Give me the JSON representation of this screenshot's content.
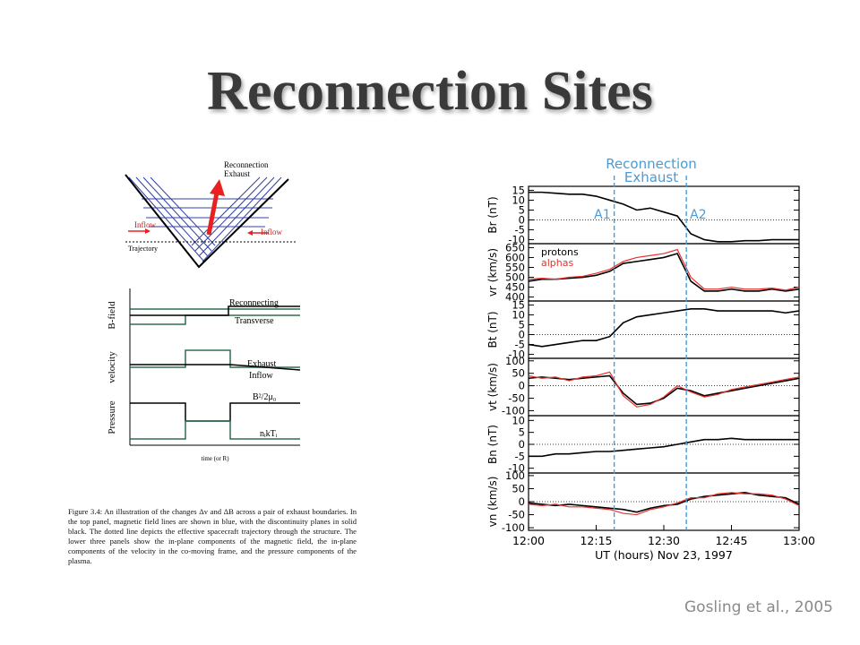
{
  "title": "Reconnection Sites",
  "credit": "Gosling et al., 2005",
  "left_figure": {
    "diagram": {
      "exhaust_label": [
        "Reconnection",
        "Exhaust"
      ],
      "inflow_labels": [
        "Inflow",
        "Inflow"
      ],
      "trajectory_label": "Trajectory"
    },
    "panels": [
      {
        "ylabel": "B-field",
        "labels": [
          "Reconnecting",
          "Transverse"
        ]
      },
      {
        "ylabel": "velocity",
        "labels": [
          "Exhaust",
          "Inflow"
        ]
      },
      {
        "ylabel": "Pressure",
        "labels": [
          "B²/2μ₀",
          "nᵢkTᵢ"
        ]
      }
    ],
    "xlabel": "time (or R)",
    "caption": "Figure 3.4: An illustration of the changes Δv and ΔB across a pair of exhaust boundaries. In the top panel, magnetic field lines are shown in blue, with the discontinuity planes in solid black. The dotted line depicts the effective spacecraft trajectory through the structure. The lower three panels show the in-plane components of the magnetic field, the in-plane components of the velocity in the co-moving frame, and the pressure components of the plasma."
  },
  "right_figure": {
    "header": [
      "Reconnection",
      "Exhaust"
    ]
  },
  "chart_data": [
    {
      "type": "line",
      "ylabel": "Br (nT)",
      "ylim": [
        -12,
        17
      ],
      "yticks": [
        15,
        10,
        5,
        0,
        -5,
        -10
      ],
      "xlim": [
        "12:00",
        "13:00"
      ],
      "x": [
        "12:00",
        "12:03",
        "12:06",
        "12:09",
        "12:12",
        "12:15",
        "12:18",
        "12:21",
        "12:24",
        "12:27",
        "12:30",
        "12:33",
        "12:36",
        "12:39",
        "12:42",
        "12:45",
        "12:48",
        "12:51",
        "12:54",
        "12:57",
        "13:00"
      ],
      "annotations": [
        {
          "text": "A1",
          "x": "12:19"
        },
        {
          "text": "A2",
          "x": "12:35"
        }
      ],
      "series": [
        {
          "color": "#000000",
          "values": [
            14,
            14,
            13.5,
            13,
            13,
            12,
            10,
            8,
            5,
            6,
            4,
            2,
            -7,
            -10,
            -11,
            -11,
            -10.5,
            -10.5,
            -10,
            -10,
            -10
          ]
        }
      ]
    },
    {
      "type": "line",
      "ylabel": "vr (km/s)",
      "ylim": [
        380,
        670
      ],
      "yticks": [
        650,
        600,
        550,
        500,
        450,
        400
      ],
      "xlim": [
        "12:00",
        "13:00"
      ],
      "legend": "upper left",
      "x": [
        "12:00",
        "12:03",
        "12:06",
        "12:09",
        "12:12",
        "12:15",
        "12:18",
        "12:21",
        "12:24",
        "12:27",
        "12:30",
        "12:33",
        "12:36",
        "12:39",
        "12:42",
        "12:45",
        "12:48",
        "12:51",
        "12:54",
        "12:57",
        "13:00"
      ],
      "series": [
        {
          "name": "protons",
          "color": "#000000",
          "values": [
            480,
            490,
            490,
            495,
            500,
            510,
            530,
            570,
            580,
            590,
            600,
            620,
            480,
            430,
            430,
            440,
            430,
            430,
            440,
            430,
            440
          ]
        },
        {
          "name": "alphas",
          "color": "#e8302c",
          "values": [
            490,
            495,
            490,
            500,
            505,
            520,
            540,
            580,
            600,
            610,
            620,
            640,
            500,
            440,
            440,
            450,
            440,
            440,
            445,
            435,
            450
          ]
        }
      ]
    },
    {
      "type": "line",
      "ylabel": "Bt (nT)",
      "ylim": [
        -12,
        17
      ],
      "yticks": [
        15,
        10,
        5,
        0,
        -5,
        -10
      ],
      "xlim": [
        "12:00",
        "13:00"
      ],
      "x": [
        "12:00",
        "12:03",
        "12:06",
        "12:09",
        "12:12",
        "12:15",
        "12:18",
        "12:21",
        "12:24",
        "12:27",
        "12:30",
        "12:33",
        "12:36",
        "12:39",
        "12:42",
        "12:45",
        "12:48",
        "12:51",
        "12:54",
        "12:57",
        "13:00"
      ],
      "series": [
        {
          "color": "#000000",
          "values": [
            -5,
            -6,
            -5,
            -4,
            -3,
            -3,
            -1,
            6,
            9,
            10,
            11,
            12,
            13,
            13,
            12,
            12,
            12,
            12,
            12,
            11,
            12
          ]
        }
      ]
    },
    {
      "type": "line",
      "ylabel": "vt (km/s)",
      "ylim": [
        -120,
        110
      ],
      "yticks": [
        100,
        50,
        0,
        -50,
        -100
      ],
      "xlim": [
        "12:00",
        "13:00"
      ],
      "x": [
        "12:00",
        "12:03",
        "12:06",
        "12:09",
        "12:12",
        "12:15",
        "12:18",
        "12:21",
        "12:24",
        "12:27",
        "12:30",
        "12:33",
        "12:36",
        "12:39",
        "12:42",
        "12:45",
        "12:48",
        "12:51",
        "12:54",
        "12:57",
        "13:00"
      ],
      "series": [
        {
          "name": "protons",
          "color": "#000000",
          "values": [
            30,
            35,
            30,
            25,
            30,
            35,
            40,
            -30,
            -75,
            -70,
            -50,
            -10,
            -20,
            -40,
            -30,
            -20,
            -10,
            0,
            10,
            20,
            30
          ]
        },
        {
          "name": "alphas",
          "color": "#e8302c",
          "values": [
            40,
            30,
            35,
            20,
            35,
            40,
            55,
            -40,
            -85,
            -75,
            -45,
            0,
            -25,
            -45,
            -35,
            -15,
            -5,
            5,
            15,
            25,
            35
          ]
        }
      ]
    },
    {
      "type": "line",
      "ylabel": "Bn (nT)",
      "ylim": [
        -12,
        12
      ],
      "yticks": [
        10,
        5,
        0,
        -5,
        -10
      ],
      "xlim": [
        "12:00",
        "13:00"
      ],
      "x": [
        "12:00",
        "12:03",
        "12:06",
        "12:09",
        "12:12",
        "12:15",
        "12:18",
        "12:21",
        "12:24",
        "12:27",
        "12:30",
        "12:33",
        "12:36",
        "12:39",
        "12:42",
        "12:45",
        "12:48",
        "12:51",
        "12:54",
        "12:57",
        "13:00"
      ],
      "series": [
        {
          "color": "#000000",
          "values": [
            -5,
            -5,
            -4,
            -4,
            -3.5,
            -3,
            -3,
            -2.5,
            -2,
            -1.5,
            -1,
            0,
            1,
            2,
            2,
            2.5,
            2,
            2,
            2,
            2,
            2
          ]
        }
      ]
    },
    {
      "type": "line",
      "ylabel": "vn (km/s)",
      "ylim": [
        -110,
        110
      ],
      "yticks": [
        100,
        50,
        0,
        -50,
        -100
      ],
      "xlim": [
        "12:00",
        "13:00"
      ],
      "xticks": [
        "12:00",
        "12:15",
        "12:30",
        "12:45",
        "13:00"
      ],
      "xlabel": "UT (hours) Nov 23, 1997",
      "x": [
        "12:00",
        "12:03",
        "12:06",
        "12:09",
        "12:12",
        "12:15",
        "12:18",
        "12:21",
        "12:24",
        "12:27",
        "12:30",
        "12:33",
        "12:36",
        "12:39",
        "12:42",
        "12:45",
        "12:48",
        "12:51",
        "12:54",
        "12:57",
        "13:00"
      ],
      "series": [
        {
          "name": "protons",
          "color": "#000000",
          "values": [
            -5,
            -10,
            -15,
            -10,
            -15,
            -20,
            -25,
            -30,
            -40,
            -25,
            -15,
            -10,
            10,
            20,
            25,
            30,
            35,
            25,
            20,
            15,
            -10
          ]
        },
        {
          "name": "alphas",
          "color": "#e8302c",
          "values": [
            -10,
            -15,
            -10,
            -20,
            -20,
            -25,
            -30,
            -45,
            -50,
            -30,
            -20,
            -5,
            15,
            15,
            30,
            35,
            30,
            30,
            25,
            10,
            -15
          ]
        }
      ]
    }
  ]
}
